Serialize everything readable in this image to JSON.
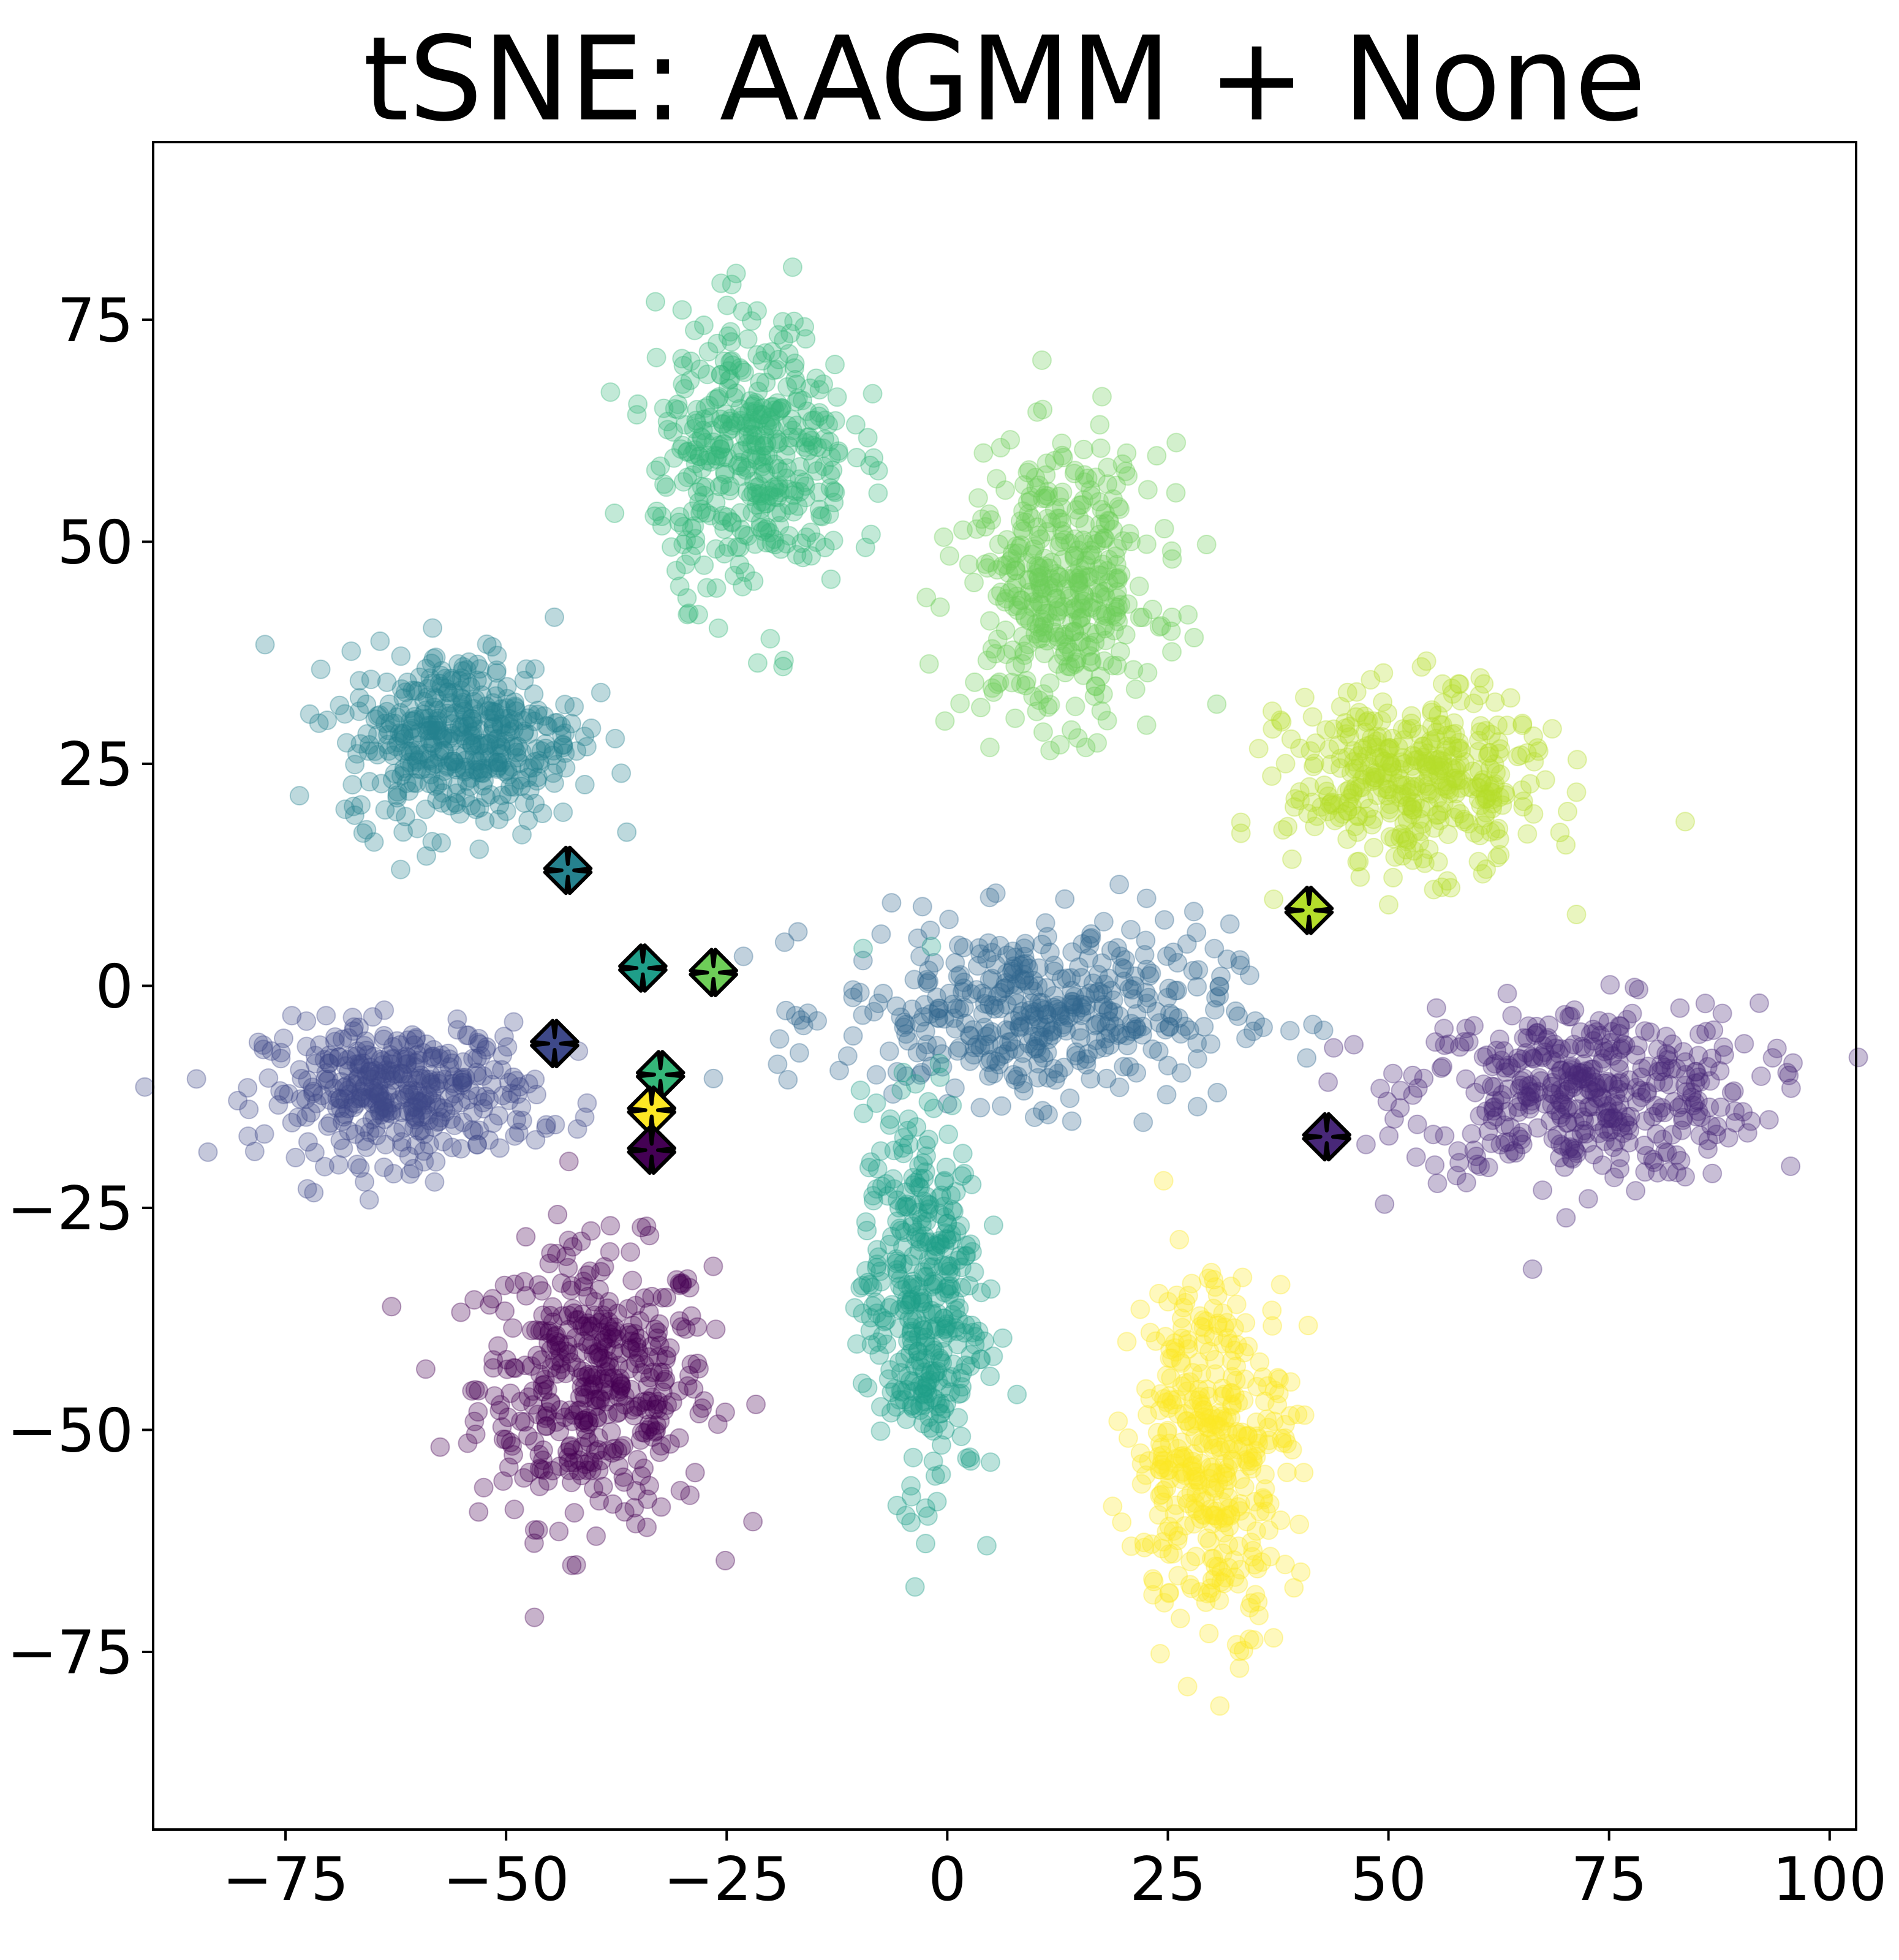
{
  "chart_data": {
    "type": "scatter",
    "title": "tSNE: AAGMM + None",
    "xlabel": "",
    "ylabel": "",
    "xlim": [
      -90,
      103
    ],
    "ylim": [
      -95,
      95
    ],
    "x_ticks": [
      -75,
      -50,
      -25,
      0,
      25,
      50,
      75,
      100
    ],
    "y_ticks": [
      -75,
      -50,
      -25,
      0,
      25,
      50,
      75
    ],
    "x_tick_labels": [
      "−75",
      "−50",
      "−25",
      "0",
      "25",
      "50",
      "75",
      "100"
    ],
    "y_tick_labels": [
      "−75",
      "−50",
      "−25",
      "0",
      "25",
      "50",
      "75"
    ],
    "grid": false,
    "legend": "none",
    "colormap": "viridis",
    "clusters": [
      {
        "class": 0,
        "color": "#440154",
        "center": [
          -40,
          -45
        ],
        "spread": [
          12,
          14
        ],
        "count": 420
      },
      {
        "class": 1,
        "color": "#482878",
        "center": [
          72,
          -12
        ],
        "spread": [
          18,
          9
        ],
        "count": 420
      },
      {
        "class": 2,
        "color": "#3e4989",
        "center": [
          -62,
          -12
        ],
        "spread": [
          14,
          7
        ],
        "count": 380
      },
      {
        "class": 3,
        "color": "#31688e",
        "center": [
          10,
          -3
        ],
        "spread": [
          20,
          9
        ],
        "count": 420
      },
      {
        "class": 4,
        "color": "#26828e",
        "center": [
          -55,
          28
        ],
        "spread": [
          12,
          9
        ],
        "count": 420
      },
      {
        "class": 5,
        "color": "#1f9e89",
        "center": [
          -3,
          -35
        ],
        "spread": [
          6,
          20
        ],
        "count": 380
      },
      {
        "class": 6,
        "color": "#35b779",
        "center": [
          -22,
          60
        ],
        "spread": [
          10,
          14
        ],
        "count": 400
      },
      {
        "class": 7,
        "color": "#6ece58",
        "center": [
          13,
          45
        ],
        "spread": [
          10,
          14
        ],
        "count": 400
      },
      {
        "class": 8,
        "color": "#b5de2b",
        "center": [
          53,
          23
        ],
        "spread": [
          13,
          9
        ],
        "count": 400
      },
      {
        "class": 9,
        "color": "#fde725",
        "center": [
          30,
          -52
        ],
        "spread": [
          8,
          18
        ],
        "count": 400
      }
    ],
    "centroids": [
      {
        "x": -43,
        "y": 13,
        "color": "#26828e"
      },
      {
        "x": -34.5,
        "y": 2,
        "color": "#1f9e89"
      },
      {
        "x": -26.5,
        "y": 1.5,
        "color": "#6ece58"
      },
      {
        "x": -44.5,
        "y": -6.5,
        "color": "#3e4989"
      },
      {
        "x": -32.5,
        "y": -10,
        "color": "#35b779"
      },
      {
        "x": -33.5,
        "y": -14,
        "color": "#fde725"
      },
      {
        "x": -33.5,
        "y": -18.5,
        "color": "#440154"
      },
      {
        "x": 41,
        "y": 8.5,
        "color": "#b5de2b"
      },
      {
        "x": 43,
        "y": -17,
        "color": "#482878"
      }
    ]
  }
}
